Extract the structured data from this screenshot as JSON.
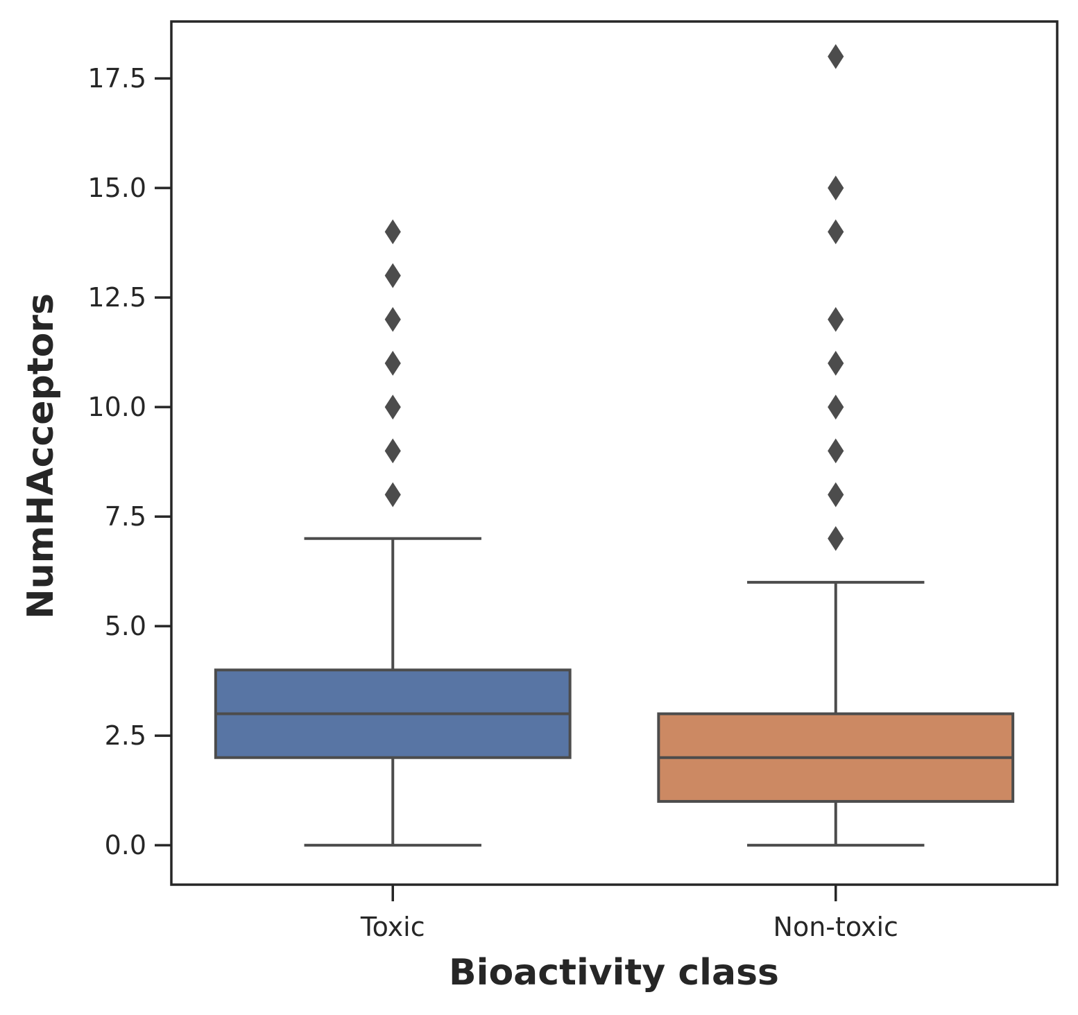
{
  "chart_data": {
    "type": "box",
    "xlabel": "Bioactivity class",
    "ylabel": "NumHAcceptors",
    "categories": [
      "Toxic",
      "Non-toxic"
    ],
    "ylim": [
      -0.9,
      18.8
    ],
    "yticks": [
      0.0,
      2.5,
      5.0,
      7.5,
      10.0,
      12.5,
      15.0,
      17.5
    ],
    "ytick_labels": [
      "0.0",
      "2.5",
      "5.0",
      "7.5",
      "10.0",
      "12.5",
      "15.0",
      "17.5"
    ],
    "grid": false,
    "legend": "none",
    "boxes": [
      {
        "category": "Toxic",
        "color": "#5875a4",
        "whisker_low": 0,
        "q1": 2,
        "median": 3,
        "q3": 4,
        "whisker_high": 7,
        "outliers": [
          8,
          9,
          10,
          11,
          12,
          13,
          14
        ]
      },
      {
        "category": "Non-toxic",
        "color": "#cc8963",
        "whisker_low": 0,
        "q1": 1,
        "median": 2,
        "q3": 3,
        "whisker_high": 6,
        "outliers": [
          7,
          8,
          9,
          10,
          11,
          12,
          14,
          15,
          18
        ]
      }
    ],
    "line_color": "#4c4c4c",
    "axis_color": "#262626"
  }
}
